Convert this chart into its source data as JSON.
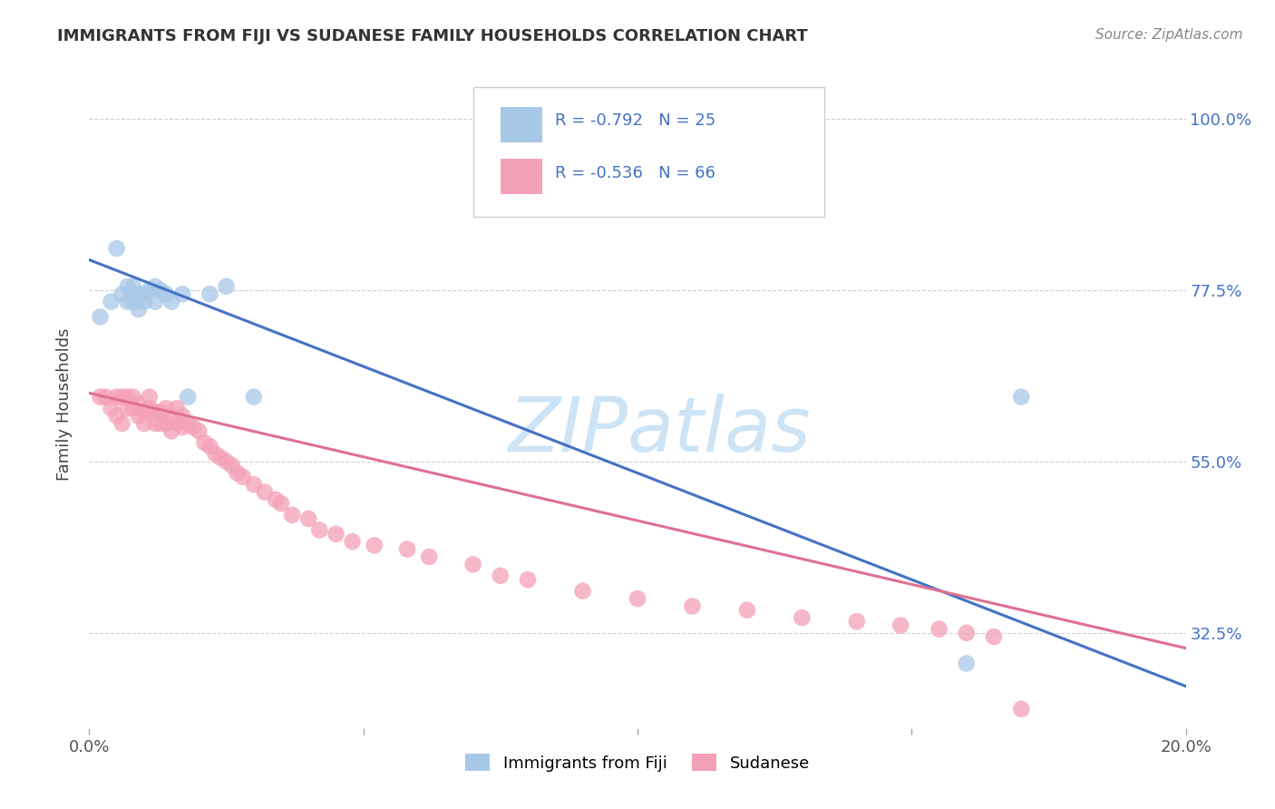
{
  "title": "IMMIGRANTS FROM FIJI VS SUDANESE FAMILY HOUSEHOLDS CORRELATION CHART",
  "source": "Source: ZipAtlas.com",
  "ylabel": "Family Households",
  "fiji_color": "#a8c8e8",
  "fiji_line_color": "#4472c4",
  "sudanese_color": "#f4a0b8",
  "sudanese_line_color": "#e07090",
  "fiji_R": "-0.792",
  "fiji_N": "25",
  "sudanese_R": "-0.536",
  "sudanese_N": "66",
  "xlim": [
    0.0,
    0.2
  ],
  "ylim": [
    0.2,
    1.05
  ],
  "yticks": [
    0.325,
    0.55,
    0.775,
    1.0
  ],
  "ytick_labels": [
    "32.5%",
    "55.0%",
    "77.5%",
    "100.0%"
  ],
  "fiji_scatter_x": [
    0.002,
    0.004,
    0.005,
    0.006,
    0.007,
    0.007,
    0.008,
    0.008,
    0.009,
    0.009,
    0.01,
    0.01,
    0.011,
    0.012,
    0.012,
    0.013,
    0.014,
    0.015,
    0.017,
    0.018,
    0.022,
    0.025,
    0.03,
    0.16,
    0.17
  ],
  "fiji_scatter_y": [
    0.74,
    0.76,
    0.83,
    0.77,
    0.76,
    0.78,
    0.76,
    0.78,
    0.75,
    0.77,
    0.76,
    0.77,
    0.775,
    0.76,
    0.78,
    0.775,
    0.77,
    0.76,
    0.77,
    0.635,
    0.77,
    0.78,
    0.635,
    0.285,
    0.635
  ],
  "sudanese_scatter_x": [
    0.002,
    0.003,
    0.004,
    0.005,
    0.005,
    0.006,
    0.006,
    0.007,
    0.007,
    0.008,
    0.008,
    0.009,
    0.009,
    0.01,
    0.01,
    0.011,
    0.011,
    0.012,
    0.012,
    0.013,
    0.013,
    0.014,
    0.014,
    0.015,
    0.015,
    0.016,
    0.016,
    0.017,
    0.017,
    0.018,
    0.019,
    0.02,
    0.021,
    0.022,
    0.023,
    0.024,
    0.025,
    0.026,
    0.027,
    0.028,
    0.03,
    0.032,
    0.034,
    0.035,
    0.037,
    0.04,
    0.042,
    0.045,
    0.048,
    0.052,
    0.058,
    0.062,
    0.07,
    0.075,
    0.08,
    0.09,
    0.1,
    0.11,
    0.12,
    0.13,
    0.14,
    0.148,
    0.155,
    0.16,
    0.165,
    0.17
  ],
  "sudanese_scatter_y": [
    0.635,
    0.635,
    0.62,
    0.635,
    0.61,
    0.635,
    0.6,
    0.62,
    0.635,
    0.62,
    0.635,
    0.61,
    0.625,
    0.615,
    0.6,
    0.62,
    0.635,
    0.615,
    0.6,
    0.615,
    0.6,
    0.62,
    0.6,
    0.61,
    0.59,
    0.62,
    0.6,
    0.61,
    0.595,
    0.6,
    0.595,
    0.59,
    0.575,
    0.57,
    0.56,
    0.555,
    0.55,
    0.545,
    0.535,
    0.53,
    0.52,
    0.51,
    0.5,
    0.495,
    0.48,
    0.475,
    0.46,
    0.455,
    0.445,
    0.44,
    0.435,
    0.425,
    0.415,
    0.4,
    0.395,
    0.38,
    0.37,
    0.36,
    0.355,
    0.345,
    0.34,
    0.335,
    0.33,
    0.325,
    0.32,
    0.225
  ],
  "fiji_line_x": [
    0.0,
    0.2
  ],
  "fiji_line_y": [
    0.815,
    0.255
  ],
  "sudanese_line_x": [
    0.0,
    0.2
  ],
  "sudanese_line_y": [
    0.64,
    0.305
  ],
  "watermark_text": "ZIPatlas",
  "watermark_color": "#cce4f5",
  "background_color": "#ffffff",
  "grid_color": "#d0d0d0",
  "right_axis_color": "#4472c4",
  "title_color": "#333333",
  "source_color": "#888888",
  "legend_color": "#4472c4"
}
